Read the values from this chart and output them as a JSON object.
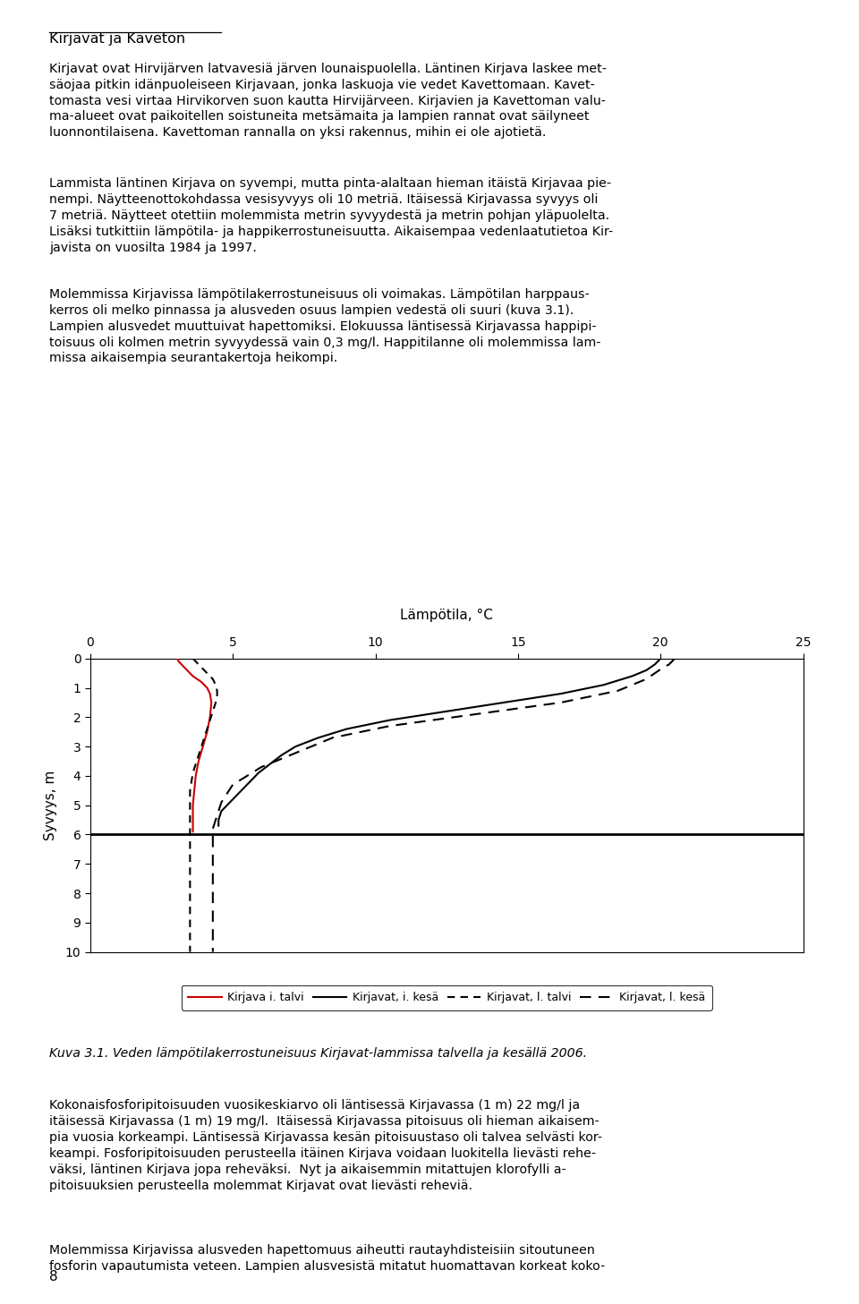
{
  "title_text": "Kirjavat ja Kaveton",
  "xlabel_title": "Lämpötila, °C",
  "ylabel": "Syvyys, m",
  "xlim": [
    0,
    25
  ],
  "ylim": [
    10,
    0
  ],
  "xticks": [
    0,
    5,
    10,
    15,
    20,
    25
  ],
  "yticks": [
    0,
    1,
    2,
    3,
    4,
    5,
    6,
    7,
    8,
    9,
    10
  ],
  "hline_y": 6.0,
  "color_red": "#cc0000",
  "color_black": "#000000",
  "ki_talvi_temp": [
    3.05,
    3.1,
    3.3,
    3.6,
    3.9,
    4.1,
    4.2,
    4.25,
    4.2,
    4.1,
    3.95,
    3.8,
    3.7,
    3.65,
    3.6,
    3.6,
    3.6,
    3.6
  ],
  "ki_talvi_depth": [
    0.0,
    0.1,
    0.3,
    0.6,
    0.8,
    1.0,
    1.2,
    1.5,
    2.0,
    2.5,
    3.0,
    3.5,
    4.0,
    4.5,
    5.0,
    5.5,
    5.7,
    5.9
  ],
  "kl_talvi_temp": [
    3.6,
    3.7,
    3.9,
    4.1,
    4.3,
    4.4,
    4.45,
    4.45,
    4.4,
    4.3,
    4.2,
    4.1,
    4.0,
    3.9,
    3.8,
    3.7,
    3.6,
    3.55,
    3.5,
    3.5,
    3.5,
    3.5,
    3.5,
    3.5,
    3.5,
    3.5,
    3.5,
    3.5,
    3.5,
    3.5,
    3.5,
    3.5,
    3.5,
    3.5,
    3.5
  ],
  "kl_talvi_depth": [
    0.0,
    0.1,
    0.3,
    0.5,
    0.7,
    0.9,
    1.1,
    1.3,
    1.5,
    1.8,
    2.1,
    2.4,
    2.7,
    3.0,
    3.3,
    3.6,
    3.9,
    4.2,
    4.5,
    5.0,
    5.5,
    6.0,
    6.5,
    7.0,
    7.5,
    8.0,
    8.5,
    9.0,
    9.2,
    9.4,
    9.6,
    9.8,
    10.0,
    10.0,
    10.0
  ],
  "ki_kesa_temp": [
    20.0,
    19.8,
    19.5,
    19.0,
    18.0,
    16.5,
    14.5,
    12.5,
    10.5,
    9.0,
    8.0,
    7.2,
    6.7,
    6.3,
    5.9,
    5.6,
    5.3,
    5.0,
    4.8,
    4.6,
    4.5,
    4.5
  ],
  "ki_kesa_depth": [
    0.0,
    0.2,
    0.4,
    0.6,
    0.9,
    1.2,
    1.5,
    1.8,
    2.1,
    2.4,
    2.7,
    3.0,
    3.3,
    3.6,
    3.9,
    4.2,
    4.5,
    4.8,
    5.0,
    5.2,
    5.5,
    5.7
  ],
  "kl_kesa_temp": [
    20.5,
    20.4,
    20.3,
    20.1,
    19.8,
    19.5,
    19.0,
    18.5,
    17.5,
    16.5,
    15.0,
    13.5,
    12.0,
    10.5,
    9.5,
    8.5,
    8.0,
    7.5,
    7.0,
    6.5,
    6.0,
    5.5,
    5.0,
    4.8,
    4.6,
    4.5,
    4.4,
    4.3,
    4.3,
    4.3,
    4.3,
    4.3,
    4.3,
    4.3,
    4.3,
    4.3,
    4.3,
    4.3,
    4.3,
    4.3,
    4.3,
    4.3,
    4.3
  ],
  "kl_kesa_depth": [
    0.0,
    0.1,
    0.2,
    0.3,
    0.5,
    0.7,
    0.9,
    1.1,
    1.3,
    1.5,
    1.7,
    1.9,
    2.1,
    2.3,
    2.5,
    2.7,
    2.9,
    3.1,
    3.3,
    3.5,
    3.7,
    4.0,
    4.3,
    4.6,
    4.9,
    5.2,
    5.5,
    5.8,
    6.0,
    6.5,
    7.0,
    7.5,
    8.0,
    8.5,
    9.0,
    9.2,
    9.4,
    9.6,
    9.8,
    10.0,
    10.0,
    10.0,
    10.0
  ],
  "legend_labels": [
    "Kirjava i. talvi",
    "Kirjavat, i. kesä",
    "Kirjavat, l. talvi",
    "Kirjavat, l. kesä"
  ],
  "para1": "Kirjavat ovat Hirvijärven latvavesiä järven lounaispuolella. Läntinen Kirjava laskee met-\nsäojaa pitkin idänpuoleiseen Kirjavaan, jonka laskuoja vie vedet Kavettomaan. Kavet-\ntomasta vesi virtaa Hirvikorven suon kautta Hirvijärveen. Kirjavien ja Kavettoman valu-\nma-alueet ovat paikoitellen soistuneita metsämaita ja lampien rannat ovat säilyneet\nluonnontilaisena. Kavettoman rannalla on yksi rakennus, mihin ei ole ajotietä.",
  "para2": "Lammista läntinen Kirjava on syvempi, mutta pinta-alaltaan hieman itäistä Kirjavaa pie-\nnempi. Näytteenottokohdassa vesisyvyys oli 10 metriä. Itäisessä Kirjavassa syvyys oli\n7 metriä. Näytteet otettiin molemmista metrin syvyydestä ja metrin pohjan yläpuolelta.\nLisäksi tutkittiin lämpötila- ja happikerrostuneisuutta. Aikaisempaa vedenlaatutietoa Kir-\njavista on vuosilta 1984 ja 1997.",
  "para3": "Molemmissa Kirjavissa lämpötilakerrostuneisuus oli voimakas. Lämpötilan harppaus-\nkerros oli melko pinnassa ja alusveden osuus lampien vedestä oli suuri (kuva 3.1).\nLampien alusvedet muuttuivat hapettomiksi. Elokuussa läntisessä Kirjavassa happipi-\ntoisuus oli kolmen metrin syvyydessä vain 0,3 mg/l. Happitilanne oli molemmissa lam-\nmissa aikaisempia seurantakertoja heikompi.",
  "caption": "Kuva 3.1. Veden lämpötilakerrostuneisuus Kirjavat-lammissa talvella ja kesällä 2006.",
  "para4": "Kokonaisfosforipitoisuuden vuosikeskiarvo oli läntisessä Kirjavassa (1 m) 22 mg/l ja\nitäisessä Kirjavassa (1 m) 19 mg/l.  Itäisessä Kirjavassa pitoisuus oli hieman aikaisem-\npia vuosia korkeampi. Läntisessä Kirjavassa kesän pitoisuustaso oli talvea selvästi kor-\nkeampi. Fosforipitoisuuden perusteella itäinen Kirjava voidaan luokitella lievästi rehe-\nväksi, läntinen Kirjava jopa reheväksi.  Nyt ja aikaisemmin mitattujen klorofylli a-\npitoisuuksien perusteella molemmat Kirjavat ovat lievästi reheviä.",
  "para5": "Molemmissa Kirjavissa alusveden hapettomuus aiheutti rautayhdisteisiin sitoutuneen\nfosforin vapautumista veteen. Lampien alusvesistä mitatut huomattavan korkeat koko-",
  "page_number": "8"
}
